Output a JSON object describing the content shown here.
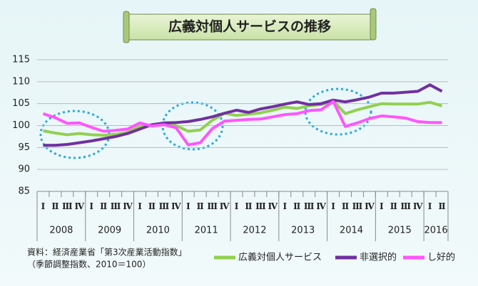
{
  "chart_data": {
    "type": "line",
    "title": "広義対個人サービスの推移",
    "categories": [
      "Ⅰ",
      "Ⅱ",
      "Ⅲ",
      "Ⅳ",
      "Ⅰ",
      "Ⅱ",
      "Ⅲ",
      "Ⅳ",
      "Ⅰ",
      "Ⅱ",
      "Ⅲ",
      "Ⅳ",
      "Ⅰ",
      "Ⅱ",
      "Ⅲ",
      "Ⅳ",
      "Ⅰ",
      "Ⅱ",
      "Ⅲ",
      "Ⅳ",
      "Ⅰ",
      "Ⅱ",
      "Ⅲ",
      "Ⅳ",
      "Ⅰ",
      "Ⅱ",
      "Ⅲ",
      "Ⅳ",
      "Ⅰ",
      "Ⅱ",
      "Ⅲ",
      "Ⅳ",
      "Ⅰ",
      "Ⅱ"
    ],
    "years": [
      "2008",
      "2009",
      "2010",
      "2011",
      "2012",
      "2013",
      "2014",
      "2015",
      "2016"
    ],
    "series": [
      {
        "name": "広義対個人サービス",
        "color": "#92d050",
        "values": [
          98.8,
          98.3,
          97.9,
          98.2,
          97.9,
          97.8,
          98.0,
          98.5,
          99.8,
          100.2,
          100.5,
          100.0,
          98.7,
          99.0,
          101.2,
          102.8,
          102.3,
          102.6,
          102.9,
          103.5,
          104.2,
          103.9,
          104.5,
          104.8,
          105.6,
          102.7,
          103.6,
          104.3,
          105.0,
          104.9,
          104.9,
          104.9,
          105.3,
          104.5
        ]
      },
      {
        "name": "非選択的",
        "color": "#7030a0",
        "values": [
          95.5,
          95.5,
          95.7,
          96.1,
          96.5,
          97.0,
          97.5,
          98.2,
          99.2,
          100.2,
          100.6,
          100.7,
          100.9,
          101.4,
          102.0,
          102.8,
          103.5,
          103.0,
          103.8,
          104.3,
          104.9,
          105.4,
          104.8,
          105.0,
          105.8,
          105.4,
          105.9,
          106.5,
          107.4,
          107.4,
          107.6,
          107.8,
          109.3,
          107.8
        ]
      },
      {
        "name": "し好的",
        "color": "#ff55ff",
        "values": [
          102.7,
          101.8,
          100.5,
          100.6,
          99.6,
          98.7,
          98.9,
          99.2,
          100.6,
          99.9,
          100.2,
          99.5,
          95.6,
          96.1,
          99.3,
          101.0,
          101.2,
          101.4,
          101.5,
          102.0,
          102.5,
          102.7,
          103.4,
          103.6,
          105.5,
          99.8,
          100.6,
          101.6,
          102.2,
          102.0,
          101.7,
          100.9,
          100.7,
          100.7
        ]
      }
    ],
    "ylim": [
      85,
      115
    ],
    "yticks": [
      85,
      90,
      95,
      100,
      105,
      110,
      115
    ],
    "grid": true,
    "source": "資料：経済産業省「第3次産業活動指数」",
    "note": "（季節調整指数、2010＝100）"
  }
}
